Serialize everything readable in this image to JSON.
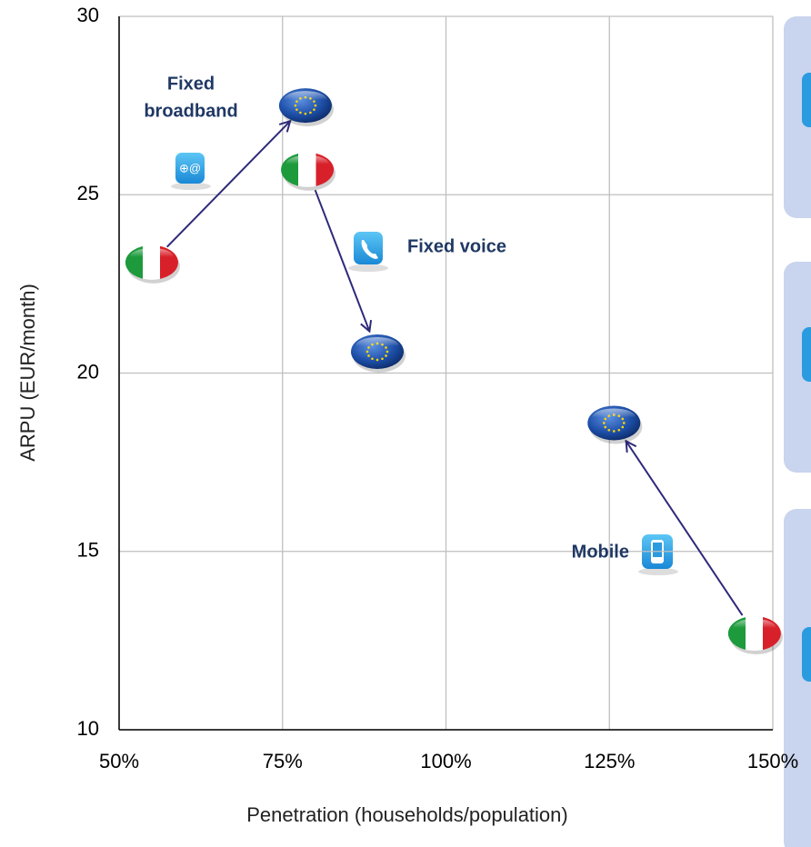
{
  "chart_data": {
    "type": "scatter",
    "xlabel": "Penetration (households/population)",
    "ylabel": "ARPU (EUR/month)",
    "xlim": [
      50,
      150
    ],
    "ylim": [
      10,
      30
    ],
    "xticks": [
      {
        "value": 50,
        "label": "50%"
      },
      {
        "value": 75,
        "label": "75%"
      },
      {
        "value": 100,
        "label": "100%"
      },
      {
        "value": 125,
        "label": "125%"
      },
      {
        "value": 150,
        "label": "150%"
      }
    ],
    "yticks": [
      10,
      15,
      20,
      25,
      30
    ],
    "grid": true,
    "categories": [
      [
        "Fixed",
        "broadband"
      ],
      [
        "Fixed voice"
      ],
      [
        "Mobile"
      ]
    ],
    "series": [
      {
        "marker": "italy",
        "x": [
          55,
          78.8,
          147.2
        ],
        "values": [
          23.1,
          25.7,
          12.7
        ]
      },
      {
        "marker": "eu",
        "x": [
          78.5,
          89.5,
          125.7
        ],
        "values": [
          27.5,
          20.6,
          18.6
        ]
      }
    ],
    "arrow_color": "#2e2a7a"
  }
}
